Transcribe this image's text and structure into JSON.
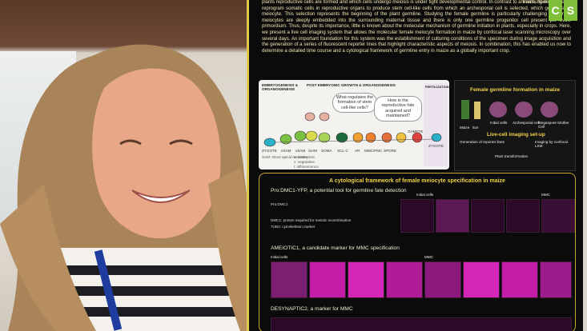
{
  "poster": {
    "website_fragment": "hamburg.de",
    "logo_text": [
      "C",
      "S"
    ],
    "intro_text": "plants reproductive cells are formed and which cells undergo meiosis is under tight developmental control. In contrast to animals, flowering plants reprogram somatic cells in reproductive organs to produce stem cell-like cells from which an archesporial cell is selected, which generates a meiocyte. This selection represents the beginning of the plant germline. Studying the female germline is particularly challenging as female meiocytes are deeply embedded into the surrounding maternal tissue and there is only one germline progenitor cell present per ovule primordium. Thus, despite its importance, little is known about the molecular mechanism of germline initiation in plants, especially in crops. Here, we present a live cell imaging system that allows the molecular female meiocyte formation in maize by confocal laser scanning microscopy over several days. An important foundation for this system was the establishment of culturing conditions of the specimen during image acquisition and the generation of a series of fluorescent reporter lines that highlight characteristic aspects of meiosis. In combination, this has enabled us now to determine a detailed time course and a cytological framework of germline entry in maize as a globally important crop.",
    "diagram": {
      "embryo_label": "EMBRYOGENESIS & ORGANOGENESIS",
      "post_embryo_label": "POST EMBRYONIC GROWTH & ORGANOGENESIS",
      "fert_label": "FERTILIZATION",
      "question1": "What regulates the formation of stem cell-like cells?",
      "question2": "How is the reproductive fate acquired and maintained?",
      "stages": [
        "ZYGOTE",
        "eSAM",
        "vSAM",
        "iSAM",
        "SOMA",
        "SCL-C",
        "AR",
        "MMC/PMC",
        "SPORE",
        "GAMETE",
        "ZYGOTE"
      ],
      "key": [
        "SAM: shoot apical meristem",
        "e: embryonic",
        "v: vegetative",
        "i: inflorescence"
      ]
    },
    "maize": {
      "title": "Female germline formation in maize",
      "organ_labels": [
        "Maize",
        "Ear",
        "Initial cells",
        "Archesporial cell",
        "Megaspore Mother Cell"
      ],
      "live_title": "Live-cell imaging set-up",
      "reporter_label": "Generation of reporter lines",
      "transform_label": "Plant transformation",
      "imaging_label": "Imaging by confocal LSM"
    },
    "framework": {
      "title": "A cytological framework of female meiocyte specification in maize",
      "row1_title": "Pro:DMC1-YFP, a potential tool for germline fate detection",
      "row1_construct": "Pro:DMC1",
      "row1_notes": [
        "DMC1: protein required for meiotic recombination",
        "TUB2: cytoskeleton marker"
      ],
      "row1_stage_labels": [
        "Initial cells",
        "MMC"
      ],
      "row2_title": "AMEIOTIC1, a candidate marker for MMC specification",
      "row2_stage_labels": [
        "Initial cells",
        "MMC"
      ],
      "row3_title": "DESYNAPTIC2, a marker for MMC"
    }
  }
}
